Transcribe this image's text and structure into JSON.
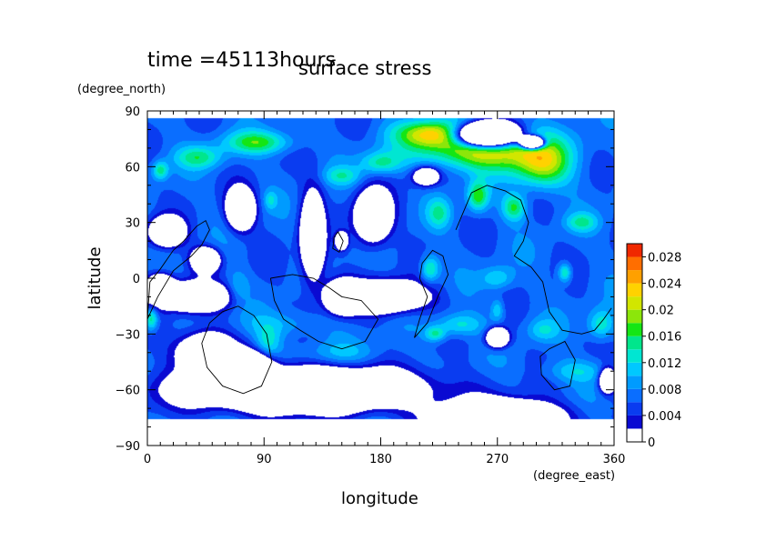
{
  "figure": {
    "time_label": "time =45113hours",
    "title": "surface stress"
  },
  "chart_data": {
    "type": "heatmap",
    "title": "surface stress",
    "xlabel": "longitude",
    "ylabel": "latitude",
    "xunits": "(degree_east)",
    "yunits": "(degree_north)",
    "xlim": [
      0,
      360
    ],
    "ylim": [
      -90,
      90
    ],
    "xticks": [
      0,
      90,
      180,
      270,
      360
    ],
    "yticks": [
      -90,
      -60,
      -30,
      0,
      30,
      60,
      90
    ],
    "xtick_labels": [
      "0",
      "90",
      "180",
      "270",
      "360"
    ],
    "ytick_labels": [
      "−90",
      "−60",
      "−30",
      "0",
      "30",
      "60",
      "90"
    ],
    "grid": false,
    "data_lon_range": [
      0,
      360
    ],
    "data_lat_range": [
      -76,
      86
    ],
    "colorbar": {
      "levels": [
        0,
        0.002,
        0.004,
        0.006,
        0.008,
        0.01,
        0.012,
        0.014,
        0.016,
        0.018,
        0.02,
        0.022,
        0.024,
        0.026,
        0.028,
        0.03
      ],
      "tick_values": [
        0,
        0.004,
        0.008,
        0.012,
        0.016,
        0.02,
        0.024,
        0.028
      ],
      "tick_labels": [
        "0",
        "0.004",
        "0.008",
        "0.012",
        "0.016",
        "0.02",
        "0.024",
        "0.028"
      ],
      "colors": [
        "#ffffff",
        "#0a0ad2",
        "#0a3cf0",
        "#0a6eff",
        "#009bff",
        "#00c8ff",
        "#00e6d2",
        "#00e68c",
        "#14e614",
        "#8ce60a",
        "#d2e600",
        "#ffd200",
        "#ffa000",
        "#ff6e00",
        "#f02800"
      ]
    },
    "field": {
      "background": 0.0065,
      "blobs": [
        {
          "lon": 260,
          "lat": 70,
          "rlon": 50,
          "rlat": 11,
          "amp": 0.017
        },
        {
          "lon": 220,
          "lat": 78,
          "rlon": 26,
          "rlat": 7,
          "amp": 0.013
        },
        {
          "lon": 305,
          "lat": 60,
          "rlon": 22,
          "rlat": 12,
          "amp": 0.012
        },
        {
          "lon": 85,
          "lat": 73,
          "rlon": 26,
          "rlat": 6,
          "amp": 0.01
        },
        {
          "lon": 40,
          "lat": 65,
          "rlon": 18,
          "rlat": 6,
          "amp": 0.008
        },
        {
          "lon": 10,
          "lat": 58,
          "rlon": 6,
          "rlat": 5,
          "amp": 0.009
        },
        {
          "lon": 180,
          "lat": 62,
          "rlon": 15,
          "rlat": 6,
          "amp": 0.008
        },
        {
          "lon": 150,
          "lat": 55,
          "rlon": 14,
          "rlat": 5,
          "amp": 0.006
        },
        {
          "lon": 255,
          "lat": 44,
          "rlon": 8,
          "rlat": 8,
          "amp": 0.011
        },
        {
          "lon": 283,
          "lat": 38,
          "rlon": 9,
          "rlat": 7,
          "amp": 0.01
        },
        {
          "lon": 335,
          "lat": 30,
          "rlon": 12,
          "rlat": 5,
          "amp": 0.007
        },
        {
          "lon": 225,
          "lat": 35,
          "rlon": 9,
          "rlat": 8,
          "amp": 0.007
        },
        {
          "lon": 218,
          "lat": 5,
          "rlon": 7,
          "rlat": 7,
          "amp": 0.009
        },
        {
          "lon": 270,
          "lat": 0,
          "rlon": 12,
          "rlat": 6,
          "amp": 0.006
        },
        {
          "lon": 322,
          "lat": 3,
          "rlon": 5,
          "rlat": 5,
          "amp": 0.009
        },
        {
          "lon": 240,
          "lat": -25,
          "rlon": 18,
          "rlat": 6,
          "amp": 0.007
        },
        {
          "lon": 222,
          "lat": -30,
          "rlon": 8,
          "rlat": 4,
          "amp": 0.008
        },
        {
          "lon": 270,
          "lat": -17,
          "rlon": 5,
          "rlat": 6,
          "amp": 0.006
        },
        {
          "lon": 305,
          "lat": -28,
          "rlon": 12,
          "rlat": 6,
          "amp": 0.005
        },
        {
          "lon": 350,
          "lat": -25,
          "rlon": 10,
          "rlat": 8,
          "amp": 0.008
        },
        {
          "lon": 3,
          "lat": -22,
          "rlon": 5,
          "rlat": 6,
          "amp": 0.01
        },
        {
          "lon": 105,
          "lat": -25,
          "rlon": 28,
          "rlat": 7,
          "amp": 0.004
        },
        {
          "lon": 93,
          "lat": -35,
          "rlon": 10,
          "rlat": 8,
          "amp": 0.006
        },
        {
          "lon": 148,
          "lat": -40,
          "rlon": 35,
          "rlat": 6,
          "amp": 0.003
        },
        {
          "lon": 330,
          "lat": -50,
          "rlon": 25,
          "rlat": 6,
          "amp": 0.005
        },
        {
          "lon": 70,
          "lat": -5,
          "rlon": 8,
          "rlat": 8,
          "amp": 0.004
        },
        {
          "lon": 135,
          "lat": 28,
          "rlon": 8,
          "rlat": 15,
          "amp": 0.003
        },
        {
          "lon": 95,
          "lat": 42,
          "rlon": 5,
          "rlat": 5,
          "amp": 0.005
        }
      ],
      "holes": [
        {
          "lon": 262,
          "lat": 77,
          "rlon": 22,
          "rlat": 6,
          "depth": 0.05
        },
        {
          "lon": 297,
          "lat": 73,
          "rlon": 8,
          "rlat": 3,
          "depth": 0.05
        },
        {
          "lon": 72,
          "lat": 37,
          "rlon": 10,
          "rlat": 10,
          "depth": 0.02
        },
        {
          "lon": 128,
          "lat": 22,
          "rlon": 9,
          "rlat": 22,
          "depth": 0.02
        },
        {
          "lon": 174,
          "lat": 33,
          "rlon": 13,
          "rlat": 13,
          "depth": 0.02
        },
        {
          "lon": 15,
          "lat": 25,
          "rlon": 12,
          "rlat": 7,
          "depth": 0.02
        },
        {
          "lon": 45,
          "lat": 10,
          "rlon": 10,
          "rlat": 6,
          "depth": 0.02
        },
        {
          "lon": 35,
          "lat": -10,
          "rlon": 25,
          "rlat": 7,
          "depth": 0.02
        },
        {
          "lon": 10,
          "lat": -5,
          "rlon": 10,
          "rlat": 7,
          "depth": 0.02
        },
        {
          "lon": 45,
          "lat": -40,
          "rlon": 20,
          "rlat": 10,
          "depth": 0.02
        },
        {
          "lon": 80,
          "lat": -48,
          "rlon": 15,
          "rlat": 8,
          "depth": 0.02
        },
        {
          "lon": 185,
          "lat": -10,
          "rlon": 28,
          "rlat": 8,
          "depth": 0.02
        },
        {
          "lon": 150,
          "lat": -10,
          "rlon": 12,
          "rlat": 8,
          "depth": 0.02
        },
        {
          "lon": 150,
          "lat": 20,
          "rlon": 4,
          "rlat": 4,
          "depth": 0.02
        },
        {
          "lon": 120,
          "lat": -60,
          "rlon": 80,
          "rlat": 10,
          "depth": 0.03
        },
        {
          "lon": 270,
          "lat": -32,
          "rlon": 8,
          "rlat": 5,
          "depth": 0.02
        },
        {
          "lon": 355,
          "lat": -55,
          "rlon": 6,
          "rlat": 6,
          "depth": 0.02
        },
        {
          "lon": 270,
          "lat": -75,
          "rlon": 40,
          "rlat": 8,
          "depth": 0.03
        },
        {
          "lon": 215,
          "lat": 55,
          "rlon": 10,
          "rlat": 5,
          "depth": 0.015
        }
      ]
    },
    "coastlines": [
      [
        [
          0,
          -22
        ],
        [
          8,
          -10
        ],
        [
          20,
          4
        ],
        [
          34,
          12
        ],
        [
          42,
          18
        ],
        [
          48,
          26
        ],
        [
          45,
          31
        ],
        [
          38,
          28
        ],
        [
          28,
          20
        ],
        [
          20,
          15
        ],
        [
          10,
          5
        ],
        [
          2,
          -2
        ],
        [
          0,
          -22
        ]
      ],
      [
        [
          70,
          -15
        ],
        [
          82,
          -20
        ],
        [
          92,
          -30
        ],
        [
          96,
          -45
        ],
        [
          88,
          -58
        ],
        [
          74,
          -62
        ],
        [
          58,
          -58
        ],
        [
          46,
          -48
        ],
        [
          42,
          -35
        ],
        [
          48,
          -24
        ],
        [
          58,
          -18
        ],
        [
          70,
          -15
        ]
      ],
      [
        [
          95,
          0
        ],
        [
          112,
          2
        ],
        [
          128,
          0
        ],
        [
          140,
          -5
        ],
        [
          150,
          -10
        ],
        [
          165,
          -12
        ],
        [
          178,
          -22
        ],
        [
          168,
          -34
        ],
        [
          150,
          -38
        ],
        [
          132,
          -34
        ],
        [
          118,
          -28
        ],
        [
          105,
          -22
        ],
        [
          98,
          -12
        ],
        [
          95,
          0
        ]
      ],
      [
        [
          147,
          25
        ],
        [
          151,
          20
        ],
        [
          148,
          14
        ],
        [
          143,
          16
        ],
        [
          144,
          22
        ],
        [
          147,
          25
        ]
      ],
      [
        [
          228,
          12
        ],
        [
          232,
          2
        ],
        [
          224,
          -10
        ],
        [
          216,
          -24
        ],
        [
          206,
          -32
        ],
        [
          210,
          -22
        ],
        [
          216,
          -10
        ],
        [
          210,
          0
        ],
        [
          212,
          8
        ],
        [
          220,
          15
        ],
        [
          228,
          12
        ]
      ],
      [
        [
          238,
          26
        ],
        [
          244,
          36
        ],
        [
          250,
          46
        ],
        [
          262,
          50
        ],
        [
          276,
          47
        ],
        [
          288,
          42
        ],
        [
          294,
          30
        ],
        [
          290,
          20
        ],
        [
          283,
          12
        ],
        [
          296,
          6
        ],
        [
          305,
          -2
        ],
        [
          310,
          -18
        ],
        [
          320,
          -28
        ],
        [
          335,
          -30
        ],
        [
          345,
          -28
        ],
        [
          352,
          -22
        ],
        [
          358,
          -16
        ]
      ],
      [
        [
          310,
          -38
        ],
        [
          322,
          -34
        ],
        [
          330,
          -44
        ],
        [
          326,
          -58
        ],
        [
          314,
          -60
        ],
        [
          304,
          -52
        ],
        [
          303,
          -42
        ],
        [
          310,
          -38
        ]
      ]
    ]
  }
}
